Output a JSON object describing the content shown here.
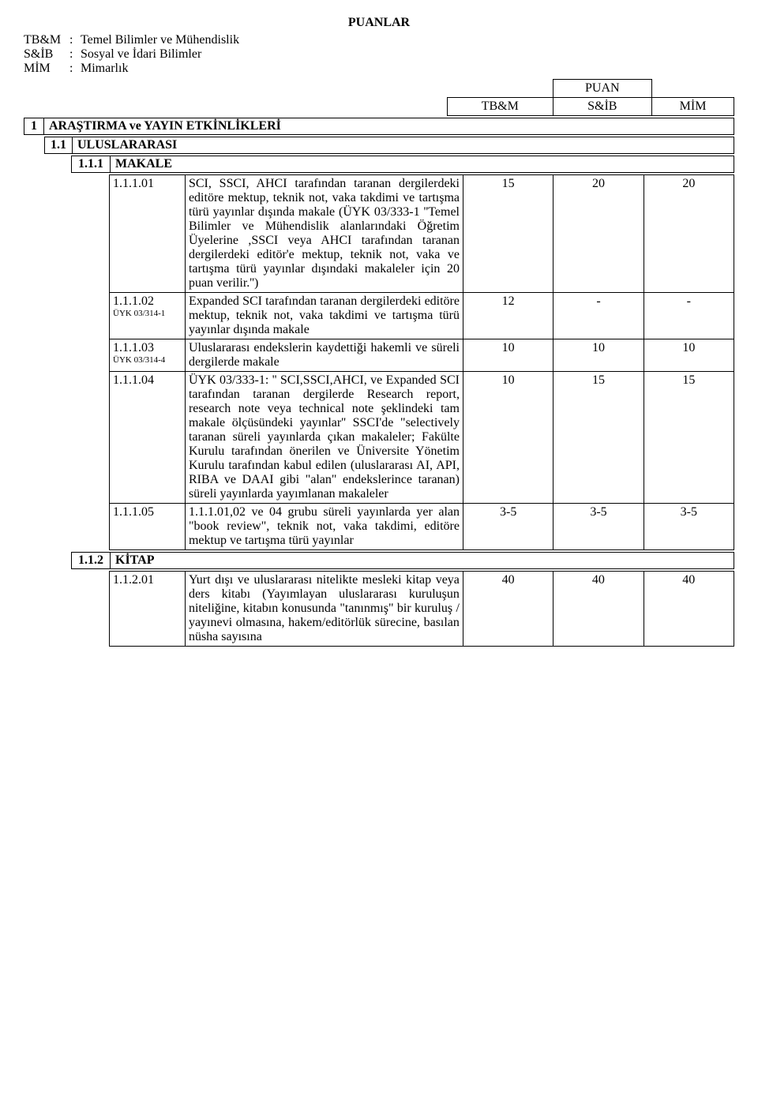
{
  "title": "PUANLAR",
  "legend": [
    {
      "key": "TB&M",
      "sep": ":",
      "val": "Temel Bilimler ve Mühendislik"
    },
    {
      "key": "S&İB",
      "sep": ":",
      "val": "Sosyal ve İdari Bilimler"
    },
    {
      "key": "MİM",
      "sep": ":",
      "val": "Mimarlık"
    }
  ],
  "puan_header": {
    "top": "PUAN",
    "cols": [
      "TB&M",
      "S&İB",
      "MİM"
    ]
  },
  "section1": {
    "num": "1",
    "title": "ARAŞTIRMA ve YAYIN ETKİNLİKLERİ"
  },
  "section11": {
    "num": "1.1",
    "title": "ULUSLARARASI"
  },
  "section111": {
    "num": "1.1.1",
    "title": "MAKALE"
  },
  "rows": [
    {
      "code": "1.1.1.01",
      "sub": "",
      "desc": "SCI, SSCI, AHCI tarafından taranan dergilerdeki editöre mektup, teknik not, vaka takdimi ve tartışma türü yayınlar dışında makale (ÜYK 03/333-1 ''Temel Bilimler ve Mühendislik alanlarındaki Öğretim Üyelerine ,SSCI veya AHCI tarafından taranan dergilerdeki editör'e mektup, teknik not, vaka ve tartışma türü yayınlar dışındaki makaleler için 20 puan verilir.'')",
      "s1": "15",
      "s2": "20",
      "s3": "20"
    },
    {
      "code": "1.1.1.02",
      "sub": "ÜYK 03/314-1",
      "desc": "Expanded SCI tarafından taranan dergilerdeki editöre mektup, teknik not, vaka takdimi ve tartışma türü yayınlar dışında makale",
      "s1": "12",
      "s2": "-",
      "s3": "-"
    },
    {
      "code": "1.1.1.03",
      "sub": "ÜYK 03/314-4",
      "desc": "Uluslararası endekslerin kaydettiği hakemli ve süreli dergilerde makale",
      "s1": "10",
      "s2": "10",
      "s3": "10"
    },
    {
      "code": "1.1.1.04",
      "sub": "",
      "desc": "ÜYK 03/333-1: '' SCI,SSCI,AHCI, ve Expanded SCI tarafından taranan dergilerde Research report, research note veya technical note şeklindeki tam makale ölçüsündeki yayınlar'' SSCI'de \"selectively taranan süreli yayınlarda çıkan makaleler; Fakülte Kurulu tarafından önerilen ve Üniversite Yönetim Kurulu tarafından kabul edilen (uluslararası AI, API, RIBA ve DAAI gibi \"alan\" endekslerince taranan) süreli yayınlarda yayımlanan makaleler",
      "s1": "10",
      "s2": "15",
      "s3": "15"
    },
    {
      "code": "1.1.1.05",
      "sub": "",
      "desc": "1.1.1.01,02 ve 04 grubu süreli yayınlarda yer alan \"book review\", teknik not, vaka takdimi, editöre mektup ve tartışma türü yayınlar",
      "s1": "3-5",
      "s2": "3-5",
      "s3": "3-5"
    }
  ],
  "section112": {
    "num": "1.1.2",
    "title": "KİTAP"
  },
  "rows2": [
    {
      "code": "1.1.2.01",
      "sub": "",
      "desc": "Yurt dışı ve uluslararası nitelikte mesleki kitap veya ders kitabı (Yayımlayan uluslararası kuruluşun niteliğine, kitabın konusunda \"tanınmış\" bir kuruluş / yayınevi olmasına, hakem/editörlük sürecine, basılan nüsha sayısına",
      "s1": "40",
      "s2": "40",
      "s3": "40"
    }
  ]
}
